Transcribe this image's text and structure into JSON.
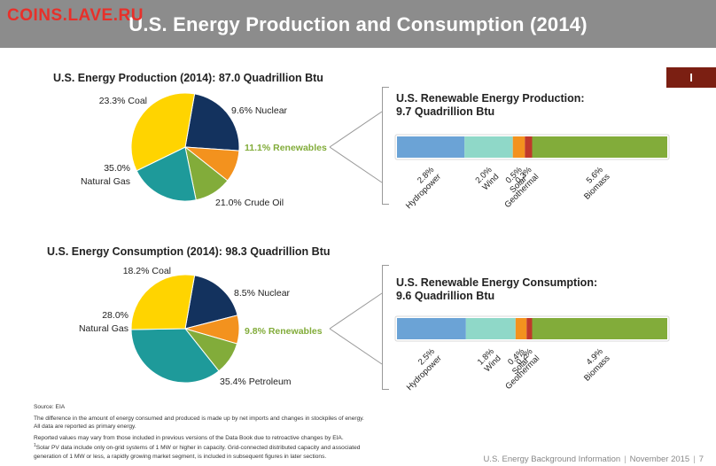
{
  "watermark": "COINS.LAVE.RU",
  "header_title": "U.S. Energy Production and Consumption (2014)",
  "section_tab": "I",
  "production": {
    "title": "U.S. Energy Production (2014): 87.0 Quadrillion Btu",
    "renewable_title_line1": "U.S. Renewable Energy Production:",
    "renewable_title_line2": "9.7 Quadrillion Btu"
  },
  "consumption": {
    "title": "U.S. Energy Consumption (2014): 98.3 Quadrillion Btu",
    "renewable_title_line1": "U.S. Renewable Energy Consumption:",
    "renewable_title_line2": "9.6 Quadrillion Btu"
  },
  "colors": {
    "coal": "#13325e",
    "nuclear": "#f3921e",
    "renewables": "#82ac3a",
    "fossil_teal": "#1e9a9a",
    "natural_gas": "#ffd400",
    "hydropower": "#6ba3d6",
    "wind": "#8fd8c8",
    "solar": "#f3921e",
    "geothermal": "#c0392b",
    "biomass": "#82ac3a",
    "renewables_label": "#82ac3a"
  },
  "chart_data": [
    {
      "type": "pie",
      "title": "U.S. Energy Production (2014): 87.0 Quadrillion Btu",
      "slices": [
        {
          "label": "Coal",
          "value": 23.3,
          "text": "23.3% Coal"
        },
        {
          "label": "Nuclear",
          "value": 9.6,
          "text": "9.6% Nuclear"
        },
        {
          "label": "Renewables",
          "value": 11.1,
          "text": "11.1% Renewables"
        },
        {
          "label": "Crude Oil",
          "value": 21.0,
          "text": "21.0% Crude Oil"
        },
        {
          "label": "Natural Gas",
          "value": 35.0,
          "text_line1": "35.0%",
          "text_line2": "Natural Gas"
        }
      ]
    },
    {
      "type": "bar",
      "orientation": "stacked-horizontal",
      "title": "U.S. Renewable Energy Production: 9.7 Quadrillion Btu",
      "segments": [
        {
          "label": "Hydropower",
          "value": 2.8,
          "text_value": "2.8%"
        },
        {
          "label": "Wind",
          "value": 2.0,
          "text_value": "2.0%"
        },
        {
          "label": "Solar",
          "value": 0.5,
          "text_value": "0.5%",
          "superscript": "1"
        },
        {
          "label": "Geothermal",
          "value": 0.3,
          "text_value": "0.3%"
        },
        {
          "label": "Biomass",
          "value": 5.6,
          "text_value": "5.6%"
        }
      ]
    },
    {
      "type": "pie",
      "title": "U.S. Energy Consumption (2014): 98.3 Quadrillion Btu",
      "slices": [
        {
          "label": "Coal",
          "value": 18.2,
          "text": "18.2% Coal"
        },
        {
          "label": "Nuclear",
          "value": 8.5,
          "text": "8.5% Nuclear"
        },
        {
          "label": "Renewables",
          "value": 9.8,
          "text": "9.8% Renewables"
        },
        {
          "label": "Petroleum",
          "value": 35.4,
          "text": "35.4% Petroleum"
        },
        {
          "label": "Natural Gas",
          "value": 28.0,
          "text_line1": "28.0%",
          "text_line2": "Natural Gas"
        }
      ]
    },
    {
      "type": "bar",
      "orientation": "stacked-horizontal",
      "title": "U.S. Renewable Energy Consumption: 9.6 Quadrillion Btu",
      "segments": [
        {
          "label": "Hydropower",
          "value": 2.5,
          "text_value": "2.5%"
        },
        {
          "label": "Wind",
          "value": 1.8,
          "text_value": "1.8%"
        },
        {
          "label": "Solar",
          "value": 0.4,
          "text_value": "0.4%",
          "superscript": "1"
        },
        {
          "label": "Geothermal",
          "value": 0.2,
          "text_value": "0.2%"
        },
        {
          "label": "Biomass",
          "value": 4.9,
          "text_value": "4.9%"
        }
      ]
    }
  ],
  "footnotes": {
    "source": "Source: EIA",
    "line1": "The difference in the amount of energy consumed and produced is made up by net imports and changes in stockpiles of energy.",
    "line2": "All data are reported as primary energy.",
    "line3": "Reported values may vary from those included in previous versions of the Data Book due to retroactive changes by EIA.",
    "line4_sup": "1",
    "line4": "Solar PV data include only on-grid systems of 1 MW or higher in capacity. Grid-connected distributed capacity and associated",
    "line5": "generation of 1 MW or less, a rapidly growing market segment, is included in subsequent figures in later sections."
  },
  "footer": {
    "doc": "U.S. Energy Background Information",
    "date": "November 2015",
    "page": "7"
  }
}
